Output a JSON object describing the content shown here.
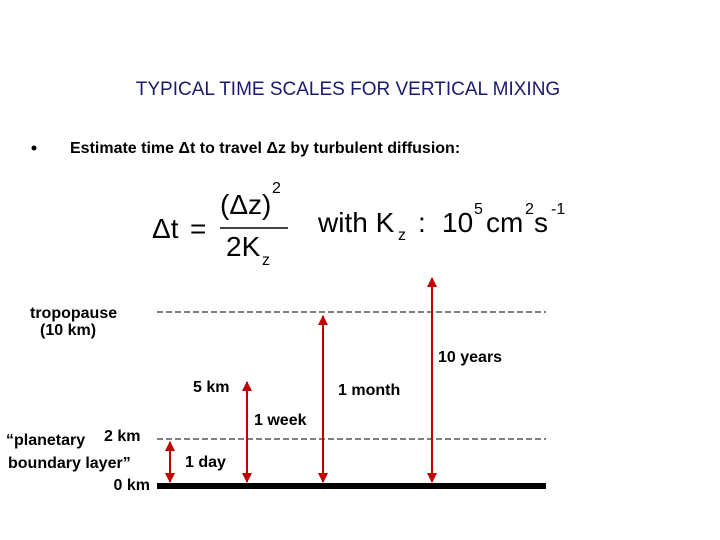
{
  "title": "TYPICAL TIME SCALES FOR VERTICAL MIXING",
  "bullet": "Estimate time Δt to travel Δz by turbulent diffusion:",
  "formula": {
    "lhs": "Δt",
    "equals": "=",
    "numerator": "(Δz)",
    "numerator_exp": "2",
    "denominator": "2K",
    "denominator_sub": "z",
    "with": "with K",
    "with_sub": "z",
    "colon": ":",
    "value": "10",
    "value_exp": "5",
    "unit1": "cm",
    "unit1_exp": "2",
    "unit2": "s",
    "unit2_exp": "-1"
  },
  "levels": {
    "tropopause": "tropopause",
    "tropopause_height": "(10 km)",
    "pbl_line1": "“planetary",
    "pbl_line2": "boundary layer”",
    "pbl_height": "2 km",
    "ground": "0 km",
    "mid_height": "5 km"
  },
  "times": {
    "ten_years": "10 years",
    "one_month": "1 month",
    "one_week": "1 week",
    "one_day": "1 day"
  }
}
